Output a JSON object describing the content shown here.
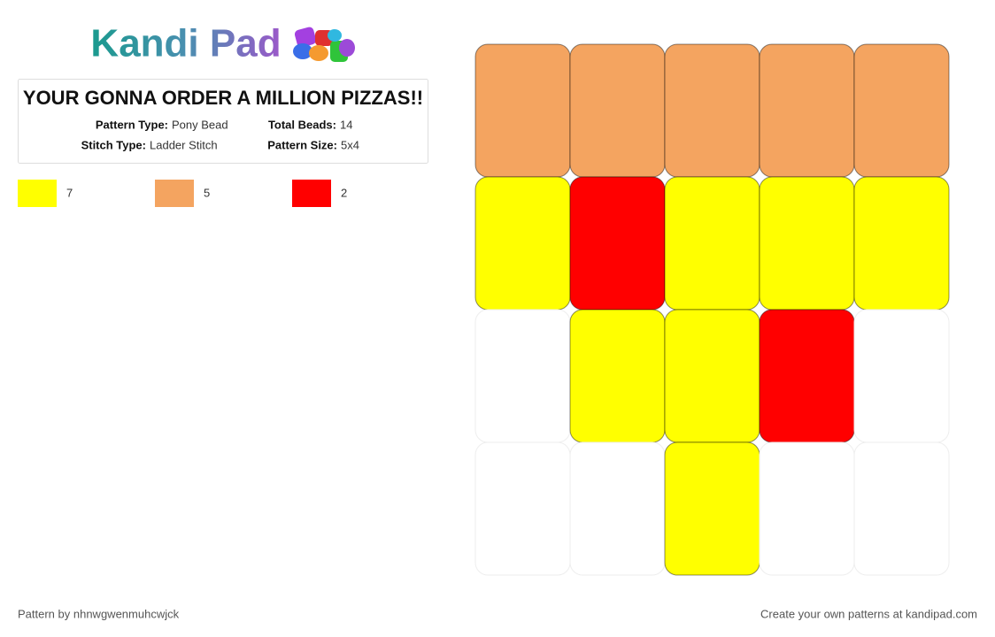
{
  "logo": "Kandi Pad",
  "title": "YOUR GONNA ORDER A MILLION PIZZAS!!",
  "details": [
    {
      "label": "Pattern Type:",
      "value": "Pony Bead"
    },
    {
      "label": "Total Beads:",
      "value": 14
    },
    {
      "label": "Stitch Type:",
      "value": "Ladder Stitch"
    },
    {
      "label": "Pattern Size:",
      "value": "5x4"
    }
  ],
  "legend": [
    {
      "color": "#ffff00",
      "count": 7
    },
    {
      "color": "#f4a460",
      "count": 5
    },
    {
      "color": "#ff0000",
      "count": 2
    }
  ],
  "grid": {
    "empty_color": "#ffffff",
    "rows": [
      [
        "#f4a460",
        "#f4a460",
        "#f4a460",
        "#f4a460",
        "#f4a460"
      ],
      [
        "#ffff00",
        "#ff0000",
        "#ffff00",
        "#ffff00",
        "#ffff00"
      ],
      [
        null,
        "#ffff00",
        "#ffff00",
        "#ff0000",
        null
      ],
      [
        null,
        null,
        "#ffff00",
        null,
        null
      ]
    ]
  },
  "footer": {
    "author": "Pattern by nhnwgwenmuhcwjck",
    "credit": "Create your own patterns at kandipad.com"
  }
}
